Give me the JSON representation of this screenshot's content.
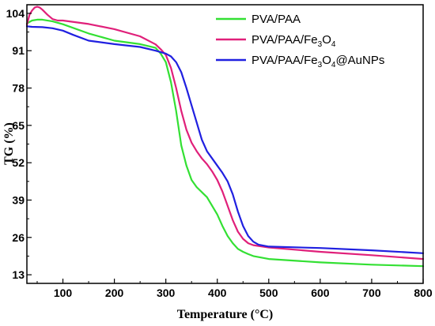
{
  "chart_data": {
    "type": "line",
    "xlabel": "Temperature (°C)",
    "ylabel": "TG (%)",
    "xlim": [
      30,
      800
    ],
    "ylim": [
      10,
      107
    ],
    "x_ticks": [
      "100",
      "200",
      "300",
      "400",
      "500",
      "600",
      "700",
      "800"
    ],
    "y_ticks": [
      "13",
      "26",
      "39",
      "52",
      "65",
      "78",
      "91",
      "104"
    ],
    "grid": false,
    "legend_position": "top-right",
    "series": [
      {
        "name": "PVA/PAA",
        "color": "#33e033",
        "x": [
          30,
          40,
          50,
          60,
          80,
          100,
          150,
          200,
          250,
          280,
          290,
          300,
          310,
          320,
          330,
          340,
          350,
          360,
          380,
          400,
          410,
          420,
          430,
          440,
          450,
          460,
          470,
          500,
          600,
          700,
          800
        ],
        "y": [
          100.5,
          101.5,
          101.8,
          101.8,
          101.2,
          100.2,
          97.0,
          94.5,
          93.3,
          92.0,
          90.0,
          87.0,
          80.0,
          70.0,
          58.0,
          51.0,
          46.0,
          43.5,
          40.0,
          34.0,
          30.0,
          26.5,
          24.0,
          22.0,
          21.0,
          20.2,
          19.5,
          18.5,
          17.3,
          16.5,
          16.0
        ]
      },
      {
        "name": "PVA/PAA/Fe₃O₄",
        "color": "#e0207a",
        "x": [
          30,
          35,
          40,
          45,
          50,
          55,
          60,
          70,
          80,
          90,
          100,
          150,
          200,
          250,
          280,
          290,
          300,
          310,
          320,
          330,
          340,
          350,
          360,
          370,
          380,
          390,
          400,
          410,
          420,
          430,
          440,
          450,
          460,
          470,
          500,
          600,
          700,
          800
        ],
        "y": [
          100.0,
          103.5,
          105.0,
          106.0,
          106.3,
          106.0,
          105.3,
          103.5,
          102.0,
          101.5,
          101.5,
          100.3,
          98.5,
          96.0,
          93.2,
          91.5,
          89.5,
          85.0,
          78.0,
          70.0,
          63.5,
          59.0,
          56.0,
          53.5,
          51.5,
          49.0,
          46.0,
          42.0,
          37.0,
          32.0,
          28.0,
          25.5,
          24.0,
          23.3,
          22.5,
          21.0,
          19.8,
          18.5
        ]
      },
      {
        "name": "PVA/PAA/Fe₃O₄@AuNPs",
        "color": "#2020e0",
        "x": [
          30,
          40,
          60,
          80,
          100,
          120,
          150,
          200,
          250,
          280,
          300,
          310,
          320,
          330,
          340,
          350,
          360,
          370,
          380,
          390,
          400,
          410,
          420,
          430,
          440,
          450,
          460,
          470,
          480,
          500,
          600,
          700,
          800
        ],
        "y": [
          99.5,
          99.3,
          99.2,
          98.8,
          98.0,
          96.5,
          94.5,
          93.3,
          92.3,
          91.0,
          90.0,
          89.0,
          87.0,
          83.5,
          78.0,
          72.0,
          66.0,
          60.0,
          56.0,
          53.5,
          51.0,
          48.5,
          45.5,
          41.0,
          35.0,
          30.0,
          26.5,
          24.5,
          23.5,
          22.8,
          22.3,
          21.5,
          20.5
        ]
      }
    ]
  }
}
